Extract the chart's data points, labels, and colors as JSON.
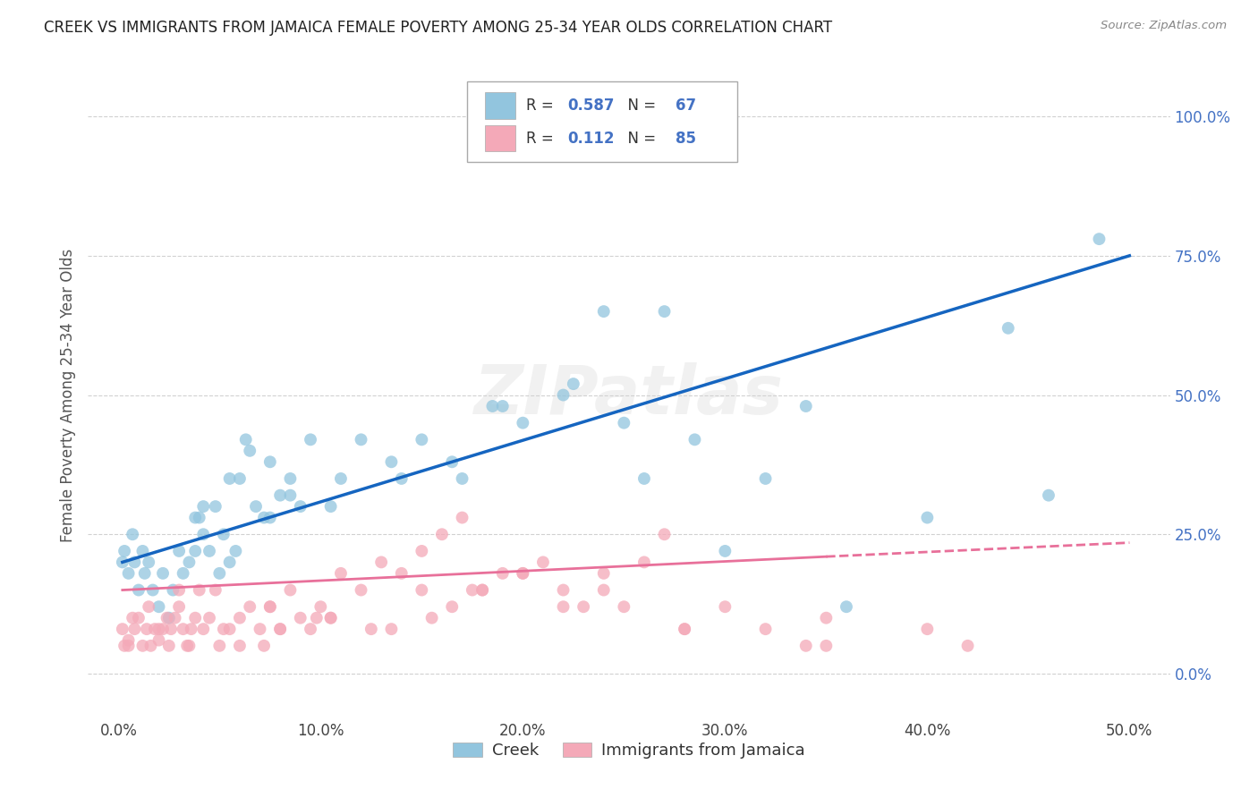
{
  "title": "CREEK VS IMMIGRANTS FROM JAMAICA FEMALE POVERTY AMONG 25-34 YEAR OLDS CORRELATION CHART",
  "source": "Source: ZipAtlas.com",
  "xlabel_tick_vals": [
    0,
    10,
    20,
    30,
    40,
    50
  ],
  "ylabel_tick_vals": [
    0,
    25,
    50,
    75,
    100
  ],
  "xlim": [
    -1.5,
    52
  ],
  "ylim": [
    -8,
    108
  ],
  "ylabel": "Female Poverty Among 25-34 Year Olds",
  "legend_labels": [
    "Creek",
    "Immigrants from Jamaica"
  ],
  "creek_color": "#92c5de",
  "jamaica_color": "#f4a9b8",
  "creek_line_color": "#1565c0",
  "jamaica_line_color": "#e8709a",
  "creek_R": 0.587,
  "creek_N": 67,
  "jamaica_R": 0.112,
  "jamaica_N": 85,
  "watermark": "ZIPatlas",
  "creek_x": [
    0.2,
    0.3,
    0.5,
    0.7,
    0.8,
    1.0,
    1.2,
    1.3,
    1.5,
    1.7,
    2.0,
    2.2,
    2.5,
    2.7,
    3.0,
    3.2,
    3.5,
    3.8,
    4.0,
    4.2,
    4.5,
    4.8,
    5.0,
    5.2,
    5.5,
    5.8,
    6.0,
    6.3,
    6.8,
    7.2,
    7.5,
    8.0,
    8.5,
    9.0,
    9.5,
    10.5,
    11.0,
    12.0,
    13.5,
    14.0,
    15.0,
    16.5,
    17.0,
    18.5,
    20.0,
    22.0,
    24.0,
    25.0,
    26.0,
    28.5,
    30.0,
    32.0,
    34.0,
    36.0,
    40.0,
    44.0,
    46.0,
    48.5,
    6.5,
    5.5,
    3.8,
    4.2,
    8.5,
    7.5,
    19.0,
    27.0,
    22.5
  ],
  "creek_y": [
    20,
    22,
    18,
    25,
    20,
    15,
    22,
    18,
    20,
    15,
    12,
    18,
    10,
    15,
    22,
    18,
    20,
    22,
    28,
    30,
    22,
    30,
    18,
    25,
    20,
    22,
    35,
    42,
    30,
    28,
    38,
    32,
    35,
    30,
    42,
    30,
    35,
    42,
    38,
    35,
    42,
    38,
    35,
    48,
    45,
    50,
    65,
    45,
    35,
    42,
    22,
    35,
    48,
    12,
    28,
    62,
    32,
    78,
    40,
    35,
    28,
    25,
    32,
    28,
    48,
    65,
    52
  ],
  "jamaica_x": [
    0.2,
    0.3,
    0.5,
    0.7,
    0.8,
    1.0,
    1.2,
    1.4,
    1.5,
    1.6,
    1.8,
    2.0,
    2.2,
    2.4,
    2.5,
    2.6,
    2.8,
    3.0,
    3.2,
    3.4,
    3.6,
    3.8,
    4.0,
    4.2,
    4.5,
    5.0,
    5.5,
    6.0,
    6.5,
    7.0,
    7.5,
    8.0,
    8.5,
    9.0,
    9.5,
    10.0,
    10.5,
    11.0,
    12.0,
    13.0,
    14.0,
    15.0,
    16.0,
    17.0,
    18.0,
    19.0,
    20.0,
    21.0,
    22.0,
    23.0,
    24.0,
    25.0,
    26.0,
    27.0,
    28.0,
    30.0,
    32.0,
    34.0,
    35.0,
    3.5,
    4.8,
    5.2,
    7.2,
    9.8,
    12.5,
    15.5,
    17.5,
    6.0,
    8.0,
    10.5,
    13.5,
    16.5,
    24.0,
    28.0,
    0.5,
    2.0,
    18.0,
    35.0,
    3.0,
    7.5,
    15.0,
    20.0,
    22.0,
    40.0,
    42.0
  ],
  "jamaica_y": [
    8,
    5,
    6,
    10,
    8,
    10,
    5,
    8,
    12,
    5,
    8,
    6,
    8,
    10,
    5,
    8,
    10,
    12,
    8,
    5,
    8,
    10,
    15,
    8,
    10,
    5,
    8,
    10,
    12,
    8,
    12,
    8,
    15,
    10,
    8,
    12,
    10,
    18,
    15,
    20,
    18,
    22,
    25,
    28,
    15,
    18,
    18,
    20,
    15,
    12,
    18,
    12,
    20,
    25,
    8,
    12,
    8,
    5,
    10,
    5,
    15,
    8,
    5,
    10,
    8,
    10,
    15,
    5,
    8,
    10,
    8,
    12,
    15,
    8,
    5,
    8,
    15,
    5,
    15,
    12,
    15,
    18,
    12,
    8,
    5
  ],
  "creek_line_x0": 0.2,
  "creek_line_x1": 50.0,
  "creek_line_y0": 20.0,
  "creek_line_y1": 75.0,
  "jamaica_line_x0": 0.2,
  "jamaica_line_x1": 35.0,
  "jamaica_line_y0": 15.0,
  "jamaica_line_y1": 21.0,
  "jamaica_dash_x0": 35.0,
  "jamaica_dash_x1": 50.0,
  "jamaica_dash_y0": 21.0,
  "jamaica_dash_y1": 23.5
}
